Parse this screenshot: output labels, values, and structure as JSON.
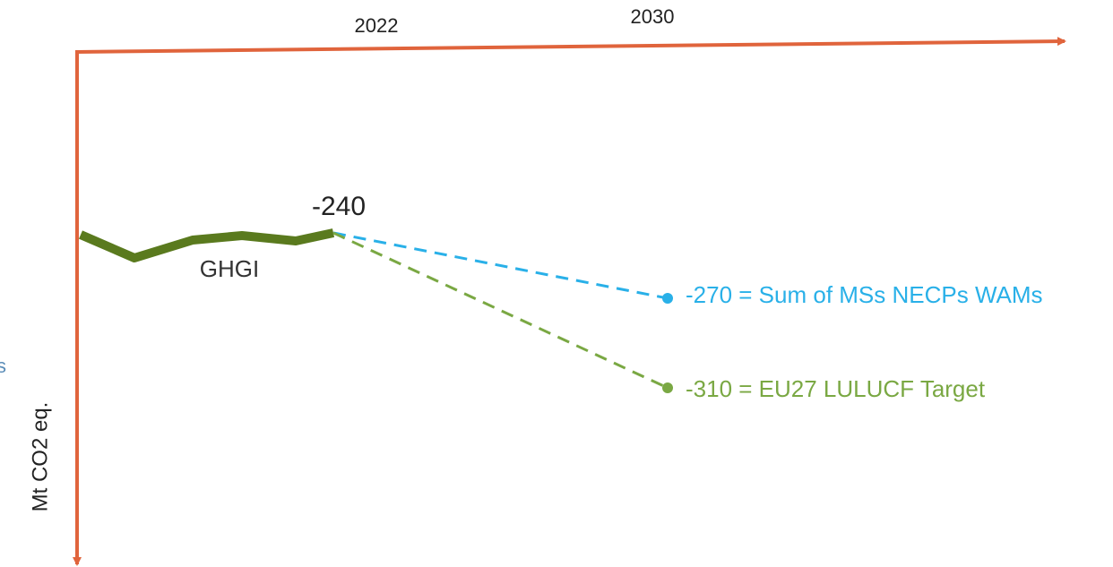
{
  "axes": {
    "x_labels": [
      "2022",
      "2030"
    ],
    "y_label": "Mt CO2 eq."
  },
  "series": {
    "history": {
      "label": "GHGI",
      "end_label": "-240"
    },
    "projection": {
      "label": "-270 = Sum of MSs NECPs WAMs"
    },
    "target": {
      "label": "-310 = EU27 LULUCF Target"
    }
  },
  "fragment": "s"
}
